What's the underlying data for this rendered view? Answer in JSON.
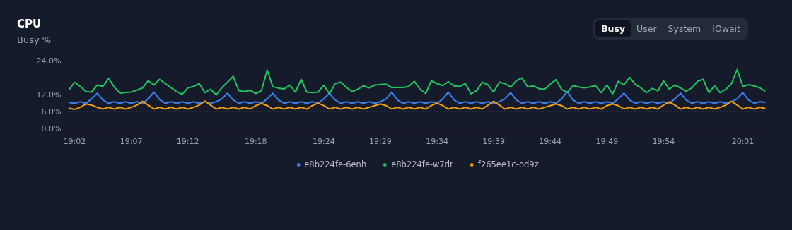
{
  "chart_data": {
    "type": "line",
    "title": "CPU",
    "subtitle": "Busy %",
    "annotations": [
      "Busy",
      "User",
      "System",
      "IOwait"
    ],
    "x": [
      19.025,
      19.0333,
      19.0417,
      19.05,
      19.0583,
      19.0667,
      19.075,
      19.0833,
      19.0917,
      19.1,
      19.1083,
      19.1167,
      19.125,
      19.1333,
      19.1417,
      19.15,
      19.1583,
      19.1667,
      19.175,
      19.1833,
      19.1917,
      19.2,
      19.2083,
      19.2167,
      19.225,
      19.2333,
      19.2417,
      19.25,
      19.2583,
      19.2667,
      19.275,
      19.2833,
      19.2917,
      19.3,
      19.3083,
      19.3167,
      19.325,
      19.3333,
      19.3417,
      19.35,
      19.3583,
      19.3667,
      19.375,
      19.3833,
      19.3917,
      19.4,
      19.4083,
      19.4167,
      19.425,
      19.4333,
      19.4417,
      19.45,
      19.4583,
      19.4667,
      19.475,
      19.4833,
      19.4917,
      19.5,
      19.5083,
      19.5167,
      19.525,
      19.5333,
      19.5417,
      19.55,
      19.5583,
      19.5667,
      19.575,
      19.5833,
      19.5917,
      19.6,
      19.6083,
      19.6167,
      19.625,
      19.6333,
      19.6417,
      19.65,
      19.6583,
      19.6667,
      19.675,
      19.6833,
      19.6917,
      19.7,
      19.7083,
      19.7167,
      19.725,
      19.7333,
      19.7417,
      19.75,
      19.7583,
      19.7667,
      19.775,
      19.7833,
      19.7917,
      19.8,
      19.8083,
      19.8167,
      19.825,
      19.8333,
      19.8417,
      19.85,
      19.8583,
      19.8667,
      19.875,
      19.8833,
      19.8917,
      19.9,
      19.9083,
      19.9167,
      19.925,
      19.9333,
      19.9417,
      19.95,
      19.9583,
      19.9667,
      19.975,
      19.9833,
      19.9917,
      20.0,
      20.0083,
      20.0167,
      20.025,
      20.0333,
      20.0417,
      20.05
    ],
    "series": [
      {
        "name": "e8b224fe-6enh",
        "color": "#3b82f6",
        "values": [
          9.3,
          9.0,
          9.6,
          9.0,
          10.6,
          12.6,
          10.2,
          9.0,
          9.6,
          9.0,
          9.6,
          9.0,
          9.6,
          9.0,
          10.6,
          13.0,
          10.4,
          9.0,
          9.6,
          9.0,
          9.6,
          9.0,
          9.6,
          9.0,
          9.6,
          9.0,
          9.6,
          10.6,
          12.6,
          10.2,
          9.0,
          9.6,
          9.0,
          9.6,
          9.0,
          10.6,
          12.6,
          10.2,
          9.0,
          9.6,
          9.0,
          9.6,
          9.0,
          9.6,
          9.0,
          10.6,
          12.6,
          10.2,
          9.0,
          9.6,
          9.0,
          9.6,
          9.0,
          9.6,
          9.0,
          9.6,
          10.6,
          13.0,
          10.2,
          9.0,
          9.6,
          9.0,
          9.6,
          9.0,
          9.6,
          9.0,
          10.6,
          13.0,
          10.2,
          9.0,
          9.6,
          9.0,
          9.6,
          9.0,
          9.6,
          9.0,
          9.6,
          10.6,
          12.8,
          10.2,
          9.0,
          9.6,
          9.0,
          9.6,
          9.0,
          9.6,
          9.0,
          10.6,
          13.2,
          10.2,
          9.0,
          9.6,
          9.0,
          9.6,
          9.0,
          9.6,
          9.0,
          10.6,
          12.6,
          10.2,
          9.0,
          9.6,
          9.0,
          9.6,
          9.0,
          9.6,
          9.0,
          10.6,
          12.6,
          10.2,
          9.0,
          9.6,
          9.0,
          9.6,
          9.0,
          9.6,
          9.0,
          9.6,
          10.6,
          12.8,
          10.2,
          9.0,
          9.6,
          9.3
        ]
      },
      {
        "name": "e8b224fe-w7dr",
        "color": "#22c55e",
        "values": [
          13.8,
          16.5,
          15,
          13.2,
          13,
          15.5,
          15,
          17.8,
          14.8,
          12.6,
          12.9,
          13,
          13.7,
          14.5,
          17,
          15.5,
          17.5,
          16,
          14.6,
          13.2,
          12.2,
          14.5,
          15,
          16,
          12.8,
          14,
          12,
          14.6,
          16.5,
          18.6,
          13.5,
          13.2,
          13.6,
          12.5,
          13.5,
          20.8,
          14.9,
          14.4,
          14.1,
          15.5,
          13,
          17.5,
          13,
          12.8,
          13,
          15.4,
          12.4,
          16,
          16.5,
          14.7,
          13.2,
          14,
          15.2,
          14.5,
          15.5,
          15.7,
          15.8,
          14.6,
          14.7,
          14.6,
          15,
          16.8,
          14,
          12.5,
          17,
          16,
          15.3,
          16.7,
          15.2,
          15,
          16,
          12.4,
          13.5,
          16.5,
          15.5,
          13,
          16.5,
          16,
          14.8,
          17,
          18,
          14.8,
          15.2,
          14.2,
          14,
          15.8,
          17.4,
          14,
          12.8,
          15.3,
          14.8,
          14.5,
          14.8,
          15.3,
          12.8,
          15.5,
          12.3,
          16.8,
          15.5,
          18.2,
          15.8,
          14.5,
          12.8,
          14.3,
          13.4,
          17,
          14,
          15.5,
          14.5,
          13.2,
          14.5,
          16.8,
          17.5,
          12.8,
          15.3,
          12.8,
          14,
          16,
          21,
          15,
          15.6,
          15.2,
          14.5,
          13.3
        ]
      },
      {
        "name": "f265ee1c-od9z",
        "color": "#f59e0b",
        "values": [
          7.3,
          6.9,
          7.6,
          8.8,
          8.4,
          7.6,
          7.0,
          7.6,
          7.0,
          7.6,
          7.0,
          7.6,
          8.4,
          9.7,
          8.4,
          7.0,
          7.6,
          7.0,
          7.6,
          7.0,
          7.6,
          7.0,
          7.6,
          8.4,
          9.8,
          8.4,
          7.0,
          7.6,
          7.0,
          7.6,
          7.0,
          7.6,
          7.0,
          8.2,
          9.0,
          8.2,
          7.0,
          7.6,
          7.0,
          7.6,
          7.0,
          7.6,
          7.0,
          8.2,
          9.1,
          8.2,
          7.0,
          7.6,
          7.0,
          7.6,
          7.0,
          7.6,
          7.0,
          7.6,
          8.2,
          8.8,
          8.2,
          7.0,
          7.6,
          7.0,
          7.6,
          7.0,
          7.6,
          7.0,
          8.2,
          9.1,
          8.2,
          7.0,
          7.6,
          7.0,
          7.6,
          7.0,
          7.6,
          7.0,
          8.4,
          9.7,
          8.4,
          7.0,
          7.6,
          7.0,
          7.6,
          7.0,
          7.6,
          7.0,
          7.6,
          8.2,
          8.8,
          8.2,
          7.0,
          7.6,
          7.0,
          7.6,
          7.0,
          7.6,
          7.0,
          8.2,
          8.8,
          8.2,
          7.0,
          7.6,
          7.0,
          7.6,
          7.0,
          7.6,
          7.0,
          8.4,
          9.5,
          8.4,
          7.0,
          7.6,
          7.0,
          7.6,
          7.0,
          7.6,
          7.0,
          7.6,
          8.4,
          9.7,
          8.4,
          7.0,
          7.6,
          7.0,
          7.6,
          7.2
        ]
      }
    ],
    "xlim": [
      19.025,
      20.05
    ],
    "xticks": [
      {
        "value": 19.0333,
        "label": "19:02"
      },
      {
        "value": 19.1167,
        "label": "19:07"
      },
      {
        "value": 19.2,
        "label": "19:12"
      },
      {
        "value": 19.3,
        "label": "19:18"
      },
      {
        "value": 19.4,
        "label": "19:24"
      },
      {
        "value": 19.4833,
        "label": "19:29"
      },
      {
        "value": 19.5667,
        "label": "19:34"
      },
      {
        "value": 19.65,
        "label": "19:39"
      },
      {
        "value": 19.7333,
        "label": "19:44"
      },
      {
        "value": 19.8167,
        "label": "19:49"
      },
      {
        "value": 19.9,
        "label": "19:54"
      },
      {
        "value": 20.0167,
        "label": "20:01"
      }
    ],
    "ylim": [
      0,
      24
    ],
    "yticks": [
      {
        "value": 0,
        "label": "0.0%"
      },
      {
        "value": 6,
        "label": "6.0%"
      },
      {
        "value": 12,
        "label": "12.0%"
      },
      {
        "value": 24,
        "label": "24.0%"
      }
    ],
    "grid": "y",
    "legend": "bottom",
    "line_style": "solid"
  }
}
